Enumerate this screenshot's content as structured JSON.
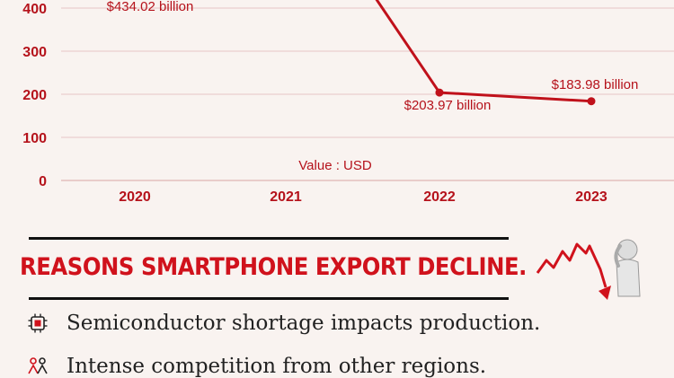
{
  "chart_data": {
    "type": "line",
    "x": [
      "2020",
      "2021",
      "2022",
      "2023"
    ],
    "values": [
      null,
      null,
      203.97,
      183.98
    ],
    "data_labels": [
      {
        "x": "2020",
        "text": "$434.02 billion"
      },
      {
        "x": "2022",
        "text": "$203.97 billion"
      },
      {
        "x": "2023",
        "text": "$183.98 billion"
      }
    ],
    "y_ticks": [
      "0",
      "100",
      "200",
      "300",
      "400"
    ],
    "ylim": [
      0,
      400
    ],
    "unit_label": "Value : USD",
    "grid": true,
    "line_color": "#c0111b"
  },
  "heading": "REASONS SMARTPHONE EXPORT DECLINE.",
  "reasons": [
    {
      "text": "Semiconductor shortage impacts production.",
      "icon": "chip-icon"
    },
    {
      "text": "Intense competition from other regions.",
      "icon": "competition-icon"
    }
  ],
  "colors": {
    "accent": "#c0111b",
    "background": "#f9f3f0"
  }
}
